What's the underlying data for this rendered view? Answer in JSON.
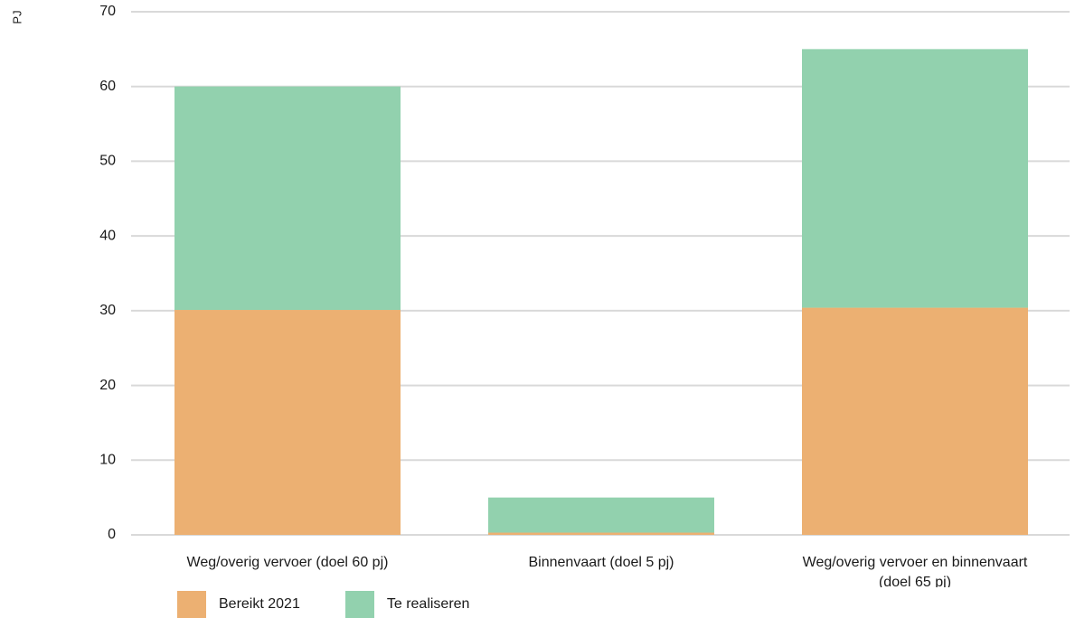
{
  "chart_data": {
    "type": "bar",
    "stacked": true,
    "ylabel": "PJ",
    "ylim": [
      0,
      70
    ],
    "yticks": [
      "0",
      "10",
      "20",
      "30",
      "40",
      "50",
      "60",
      "70"
    ],
    "grid": true,
    "legend_position": "bottom-left",
    "categories": [
      [
        "Weg/overig vervoer (doel 60 pj)"
      ],
      [
        "Binnenvaart (doel 5 pj)"
      ],
      [
        "Weg/overig vervoer en binnenvaart",
        "(doel 65 pj)"
      ]
    ],
    "series": [
      {
        "name": "Bereikt 2021",
        "color": "#ecb072",
        "values": [
          30.1,
          0.3,
          30.4
        ]
      },
      {
        "name": "Te realiseren",
        "color": "#92d1ae",
        "values": [
          29.9,
          4.7,
          34.6
        ]
      }
    ]
  }
}
